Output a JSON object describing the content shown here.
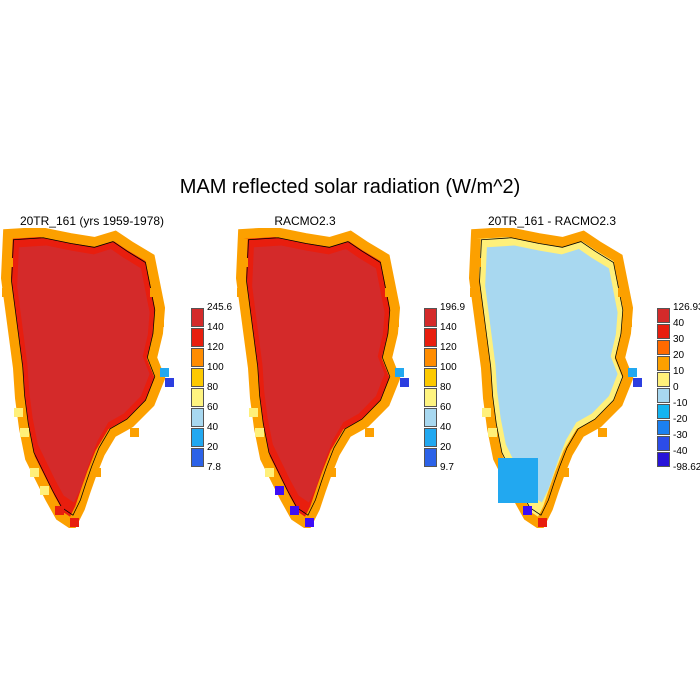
{
  "title": "MAM reflected solar radiation (W/m^2)",
  "panels": [
    {
      "title": "20TR_161 (yrs 1959-1978)",
      "colorbar": {
        "labels": [
          "245.6",
          "140",
          "120",
          "100",
          "80",
          "60",
          "40",
          "20",
          "7.8"
        ],
        "colors": [
          "#d42a2a",
          "#e81e0e",
          "#ff8c00",
          "#fdc900",
          "#fff480",
          "#a8d8f0",
          "#22a8f0",
          "#2c62e8",
          "#2814d8",
          "#3d0df6"
        ]
      }
    },
    {
      "title": "RACMO2.3",
      "colorbar": {
        "labels": [
          "196.9",
          "140",
          "120",
          "100",
          "80",
          "60",
          "40",
          "20",
          "9.7"
        ],
        "colors": [
          "#d42a2a",
          "#e81e0e",
          "#ff8c00",
          "#fdc900",
          "#fff480",
          "#a8d8f0",
          "#22a8f0",
          "#2c62e8",
          "#2814d8",
          "#3d0df6"
        ]
      }
    },
    {
      "title": "20TR_161 - RACMO2.3",
      "colorbar": {
        "labels": [
          "126.93",
          "40",
          "30",
          "20",
          "10",
          "0",
          "-10",
          "-20",
          "-30",
          "-40",
          "-98.62"
        ],
        "colors": [
          "#d42a2a",
          "#e81e0e",
          "#ff6a00",
          "#fca000",
          "#fff07a",
          "#a8d8f0",
          "#14b4f0",
          "#1c80f0",
          "#2c4ce8",
          "#2814d8",
          "#3d0df6"
        ]
      }
    }
  ],
  "palette": {
    "interior_panel1": "#d42a2a",
    "interior_panel2": "#d42a2a",
    "interior_panel3": "#a8d8f0",
    "edge_red": "#e81e0e",
    "edge_orange": "#fca000",
    "edge_yellow": "#fff07a",
    "edge_blue": "#22a8f0",
    "edge_darkblue": "#2c3ee0",
    "edge_purple": "#3d0df6"
  }
}
